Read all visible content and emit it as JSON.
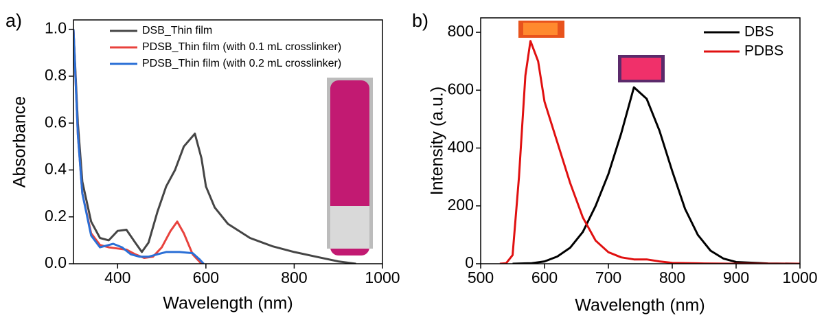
{
  "chart_data": [
    {
      "type": "line",
      "panel_label": "a)",
      "xlabel": "Wavelength (nm)",
      "ylabel": "Absorbance",
      "xlim": [
        300,
        1000
      ],
      "ylim": [
        0,
        1.04
      ],
      "xticks": [
        400,
        600,
        800,
        1000
      ],
      "yticks": [
        {
          "value": 0,
          "label": "0.0"
        },
        0.2,
        0.4,
        0.6,
        0.8,
        {
          "value": 1,
          "label": "1.0"
        }
      ],
      "legend": "upper center",
      "series": [
        {
          "name": "DSB_Thin film",
          "color": "#454545",
          "x": [
            300,
            310,
            320,
            340,
            360,
            380,
            400,
            420,
            440,
            455,
            470,
            490,
            510,
            530,
            550,
            575,
            590,
            600,
            620,
            650,
            700,
            750,
            800,
            850,
            900,
            940
          ],
          "values": [
            1.0,
            0.6,
            0.35,
            0.18,
            0.11,
            0.1,
            0.14,
            0.145,
            0.09,
            0.05,
            0.09,
            0.22,
            0.33,
            0.4,
            0.5,
            0.555,
            0.45,
            0.33,
            0.24,
            0.17,
            0.11,
            0.075,
            0.05,
            0.03,
            0.01,
            0.0
          ]
        },
        {
          "name": "PDSB_Thin film (with 0.1 mL crosslinker)",
          "color": "#e8423d",
          "x": [
            300,
            310,
            320,
            340,
            360,
            380,
            400,
            420,
            440,
            460,
            480,
            500,
            520,
            535,
            550,
            570,
            590
          ],
          "values": [
            1.0,
            0.55,
            0.3,
            0.13,
            0.08,
            0.07,
            0.065,
            0.06,
            0.04,
            0.025,
            0.03,
            0.07,
            0.14,
            0.18,
            0.13,
            0.04,
            0.0
          ]
        },
        {
          "name": "PDSB_Thin film (with 0.2 mL crosslinker)",
          "color": "#2a6fd6",
          "x": [
            300,
            310,
            320,
            340,
            360,
            380,
            390,
            410,
            430,
            450,
            470,
            490,
            510,
            540,
            570,
            585,
            595
          ],
          "values": [
            1.0,
            0.55,
            0.3,
            0.12,
            0.07,
            0.08,
            0.085,
            0.07,
            0.04,
            0.03,
            0.03,
            0.04,
            0.05,
            0.05,
            0.045,
            0.02,
            0.0
          ]
        }
      ]
    },
    {
      "type": "line",
      "panel_label": "b)",
      "xlabel": "Wavelength (nm)",
      "ylabel": "Intensity (a.u.)",
      "xlim": [
        500,
        1000
      ],
      "ylim": [
        0,
        850
      ],
      "xticks": [
        500,
        600,
        700,
        800,
        900,
        1000
      ],
      "yticks": [
        0,
        200,
        400,
        600,
        800
      ],
      "legend": "upper right",
      "series": [
        {
          "name": "DBS",
          "color": "#000000",
          "x": [
            550,
            580,
            600,
            620,
            640,
            660,
            680,
            700,
            720,
            740,
            760,
            780,
            800,
            820,
            840,
            860,
            880,
            900,
            950,
            1000
          ],
          "values": [
            0,
            2,
            8,
            25,
            55,
            110,
            200,
            310,
            450,
            610,
            570,
            460,
            320,
            190,
            100,
            45,
            18,
            6,
            1,
            0
          ]
        },
        {
          "name": "PDBS",
          "color": "#e01010",
          "x": [
            530,
            540,
            550,
            560,
            570,
            578,
            590,
            600,
            620,
            640,
            660,
            680,
            700,
            720,
            740,
            760,
            780,
            800,
            850,
            900,
            1000
          ],
          "values": [
            0,
            2,
            30,
            300,
            650,
            770,
            700,
            560,
            420,
            280,
            160,
            80,
            40,
            22,
            15,
            15,
            8,
            3,
            1,
            0,
            0
          ]
        }
      ]
    }
  ]
}
